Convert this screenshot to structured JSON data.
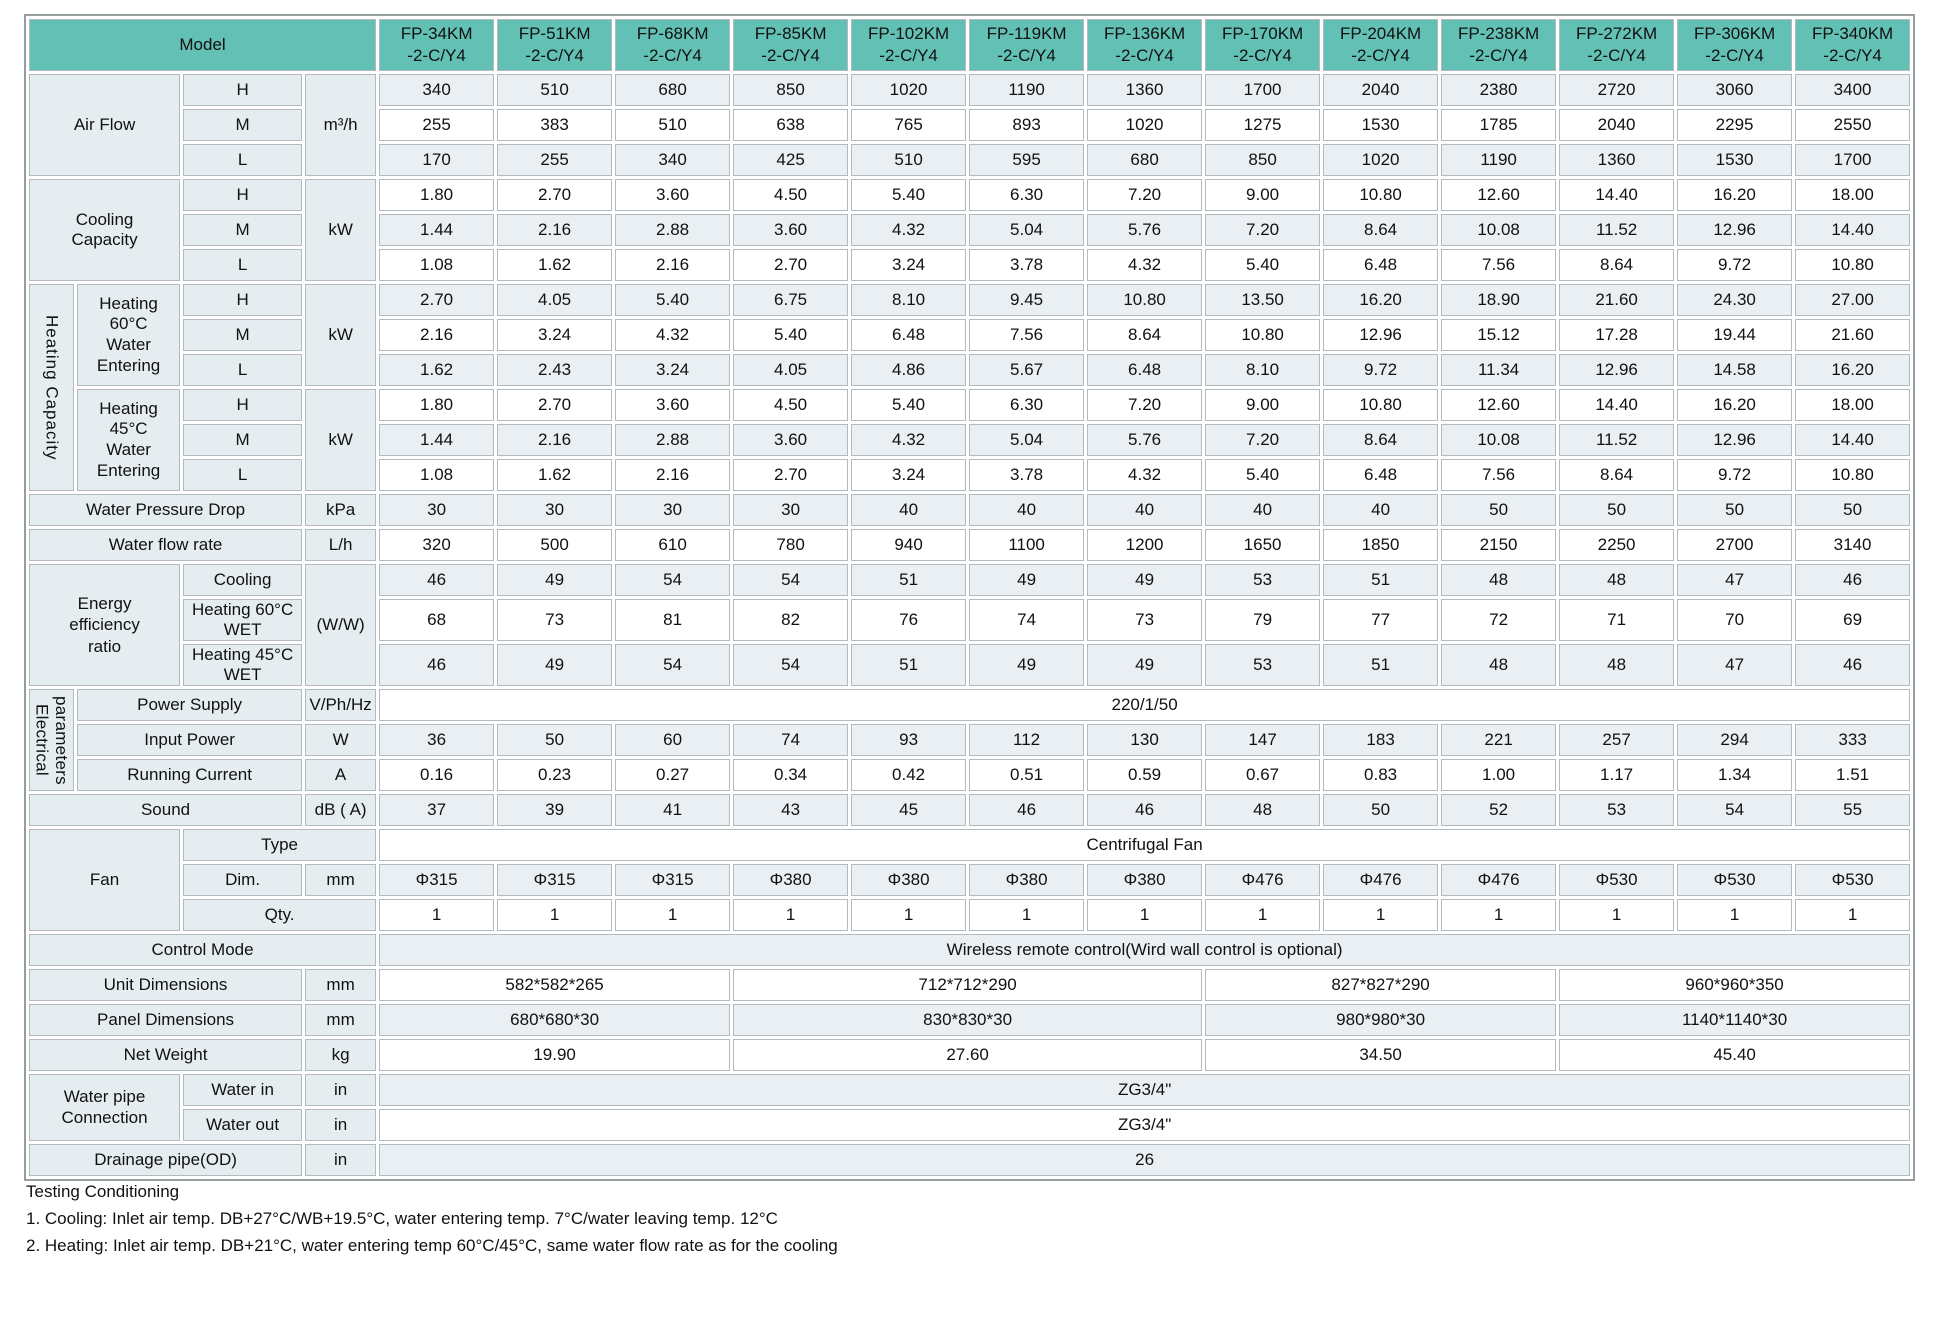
{
  "header": {
    "model_label": "Model",
    "models": [
      "FP-34KM\n-2-C/Y4",
      "FP-51KM\n-2-C/Y4",
      "FP-68KM\n-2-C/Y4",
      "FP-85KM\n-2-C/Y4",
      "FP-102KM\n-2-C/Y4",
      "FP-119KM\n-2-C/Y4",
      "FP-136KM\n-2-C/Y4",
      "FP-170KM\n-2-C/Y4",
      "FP-204KM\n-2-C/Y4",
      "FP-238KM\n-2-C/Y4",
      "FP-272KM\n-2-C/Y4",
      "FP-306KM\n-2-C/Y4",
      "FP-340KM\n-2-C/Y4"
    ]
  },
  "keys": {
    "h": "H",
    "m": "M",
    "l": "L"
  },
  "air_flow": {
    "label": "Air Flow",
    "unit": "m³/h",
    "h": [
      "340",
      "510",
      "680",
      "850",
      "1020",
      "1190",
      "1360",
      "1700",
      "2040",
      "2380",
      "2720",
      "3060",
      "3400"
    ],
    "m": [
      "255",
      "383",
      "510",
      "638",
      "765",
      "893",
      "1020",
      "1275",
      "1530",
      "1785",
      "2040",
      "2295",
      "2550"
    ],
    "l": [
      "170",
      "255",
      "340",
      "425",
      "510",
      "595",
      "680",
      "850",
      "1020",
      "1190",
      "1360",
      "1530",
      "1700"
    ]
  },
  "cooling": {
    "label": "Cooling\nCapacity",
    "unit": "kW",
    "h": [
      "1.80",
      "2.70",
      "3.60",
      "4.50",
      "5.40",
      "6.30",
      "7.20",
      "9.00",
      "10.80",
      "12.60",
      "14.40",
      "16.20",
      "18.00"
    ],
    "m": [
      "1.44",
      "2.16",
      "2.88",
      "3.60",
      "4.32",
      "5.04",
      "5.76",
      "7.20",
      "8.64",
      "10.08",
      "11.52",
      "12.96",
      "14.40"
    ],
    "l": [
      "1.08",
      "1.62",
      "2.16",
      "2.70",
      "3.24",
      "3.78",
      "4.32",
      "5.40",
      "6.48",
      "7.56",
      "8.64",
      "9.72",
      "10.80"
    ]
  },
  "heating": {
    "group_label": "Heating Capacity",
    "h60": {
      "label": "Heating\n60°C\nWater\nEntering",
      "unit": "kW",
      "h": [
        "2.70",
        "4.05",
        "5.40",
        "6.75",
        "8.10",
        "9.45",
        "10.80",
        "13.50",
        "16.20",
        "18.90",
        "21.60",
        "24.30",
        "27.00"
      ],
      "m": [
        "2.16",
        "3.24",
        "4.32",
        "5.40",
        "6.48",
        "7.56",
        "8.64",
        "10.80",
        "12.96",
        "15.12",
        "17.28",
        "19.44",
        "21.60"
      ],
      "l": [
        "1.62",
        "2.43",
        "3.24",
        "4.05",
        "4.86",
        "5.67",
        "6.48",
        "8.10",
        "9.72",
        "11.34",
        "12.96",
        "14.58",
        "16.20"
      ]
    },
    "h45": {
      "label": "Heating\n45°C\nWater\nEntering",
      "unit": "kW",
      "h": [
        "1.80",
        "2.70",
        "3.60",
        "4.50",
        "5.40",
        "6.30",
        "7.20",
        "9.00",
        "10.80",
        "12.60",
        "14.40",
        "16.20",
        "18.00"
      ],
      "m": [
        "1.44",
        "2.16",
        "2.88",
        "3.60",
        "4.32",
        "5.04",
        "5.76",
        "7.20",
        "8.64",
        "10.08",
        "11.52",
        "12.96",
        "14.40"
      ],
      "l": [
        "1.08",
        "1.62",
        "2.16",
        "2.70",
        "3.24",
        "3.78",
        "4.32",
        "5.40",
        "6.48",
        "7.56",
        "8.64",
        "9.72",
        "10.80"
      ]
    }
  },
  "water_pressure_drop": {
    "label": "Water Pressure Drop",
    "unit": "kPa",
    "values": [
      "30",
      "30",
      "30",
      "30",
      "40",
      "40",
      "40",
      "40",
      "40",
      "50",
      "50",
      "50",
      "50"
    ]
  },
  "water_flow_rate": {
    "label": "Water flow rate",
    "unit": "L/h",
    "values": [
      "320",
      "500",
      "610",
      "780",
      "940",
      "1100",
      "1200",
      "1650",
      "1850",
      "2150",
      "2250",
      "2700",
      "3140"
    ]
  },
  "eer": {
    "label": "Energy\nefficiency\nratio",
    "unit": "(W/W)",
    "cooling_label": "Cooling",
    "h60_label": "Heating 60°C WET",
    "h45_label": "Heating 45°C WET",
    "cooling": [
      "46",
      "49",
      "54",
      "54",
      "51",
      "49",
      "49",
      "53",
      "51",
      "48",
      "48",
      "47",
      "46"
    ],
    "h60": [
      "68",
      "73",
      "81",
      "82",
      "76",
      "74",
      "73",
      "79",
      "77",
      "72",
      "71",
      "70",
      "69"
    ],
    "h45": [
      "46",
      "49",
      "54",
      "54",
      "51",
      "49",
      "49",
      "53",
      "51",
      "48",
      "48",
      "47",
      "46"
    ]
  },
  "electrical": {
    "group_label": "Electrical\nparameters",
    "power_supply": {
      "label": "Power Supply",
      "unit": "V/Ph/Hz",
      "value": "220/1/50"
    },
    "input_power": {
      "label": "Input Power",
      "unit": "W",
      "values": [
        "36",
        "50",
        "60",
        "74",
        "93",
        "112",
        "130",
        "147",
        "183",
        "221",
        "257",
        "294",
        "333"
      ]
    },
    "running_current": {
      "label": "Running Current",
      "unit": "A",
      "values": [
        "0.16",
        "0.23",
        "0.27",
        "0.34",
        "0.42",
        "0.51",
        "0.59",
        "0.67",
        "0.83",
        "1.00",
        "1.17",
        "1.34",
        "1.51"
      ]
    }
  },
  "sound": {
    "label": "Sound",
    "unit": "dB ( A)",
    "values": [
      "37",
      "39",
      "41",
      "43",
      "45",
      "46",
      "46",
      "48",
      "50",
      "52",
      "53",
      "54",
      "55"
    ]
  },
  "fan": {
    "label": "Fan",
    "type_label": "Type",
    "type_value": "Centrifugal Fan",
    "dim_label": "Dim.",
    "dim_unit": "mm",
    "dim_values": [
      "Φ315",
      "Φ315",
      "Φ315",
      "Φ380",
      "Φ380",
      "Φ380",
      "Φ380",
      "Φ476",
      "Φ476",
      "Φ476",
      "Φ530",
      "Φ530",
      "Φ530"
    ],
    "qty_label": "Qty.",
    "qty_values": [
      "1",
      "1",
      "1",
      "1",
      "1",
      "1",
      "1",
      "1",
      "1",
      "1",
      "1",
      "1",
      "1"
    ]
  },
  "control_mode": {
    "label": "Control Mode",
    "value": "Wireless remote control(Wird wall control is optional)"
  },
  "unit_dimensions": {
    "label": "Unit Dimensions",
    "unit": "mm",
    "values": [
      "582*582*265",
      "712*712*290",
      "827*827*290",
      "960*960*350"
    ]
  },
  "panel_dimensions": {
    "label": "Panel Dimensions",
    "unit": "mm",
    "values": [
      "680*680*30",
      "830*830*30",
      "980*980*30",
      "1140*1140*30"
    ]
  },
  "net_weight": {
    "label": "Net Weight",
    "unit": "kg",
    "values": [
      "19.90",
      "27.60",
      "34.50",
      "45.40"
    ]
  },
  "water_pipe": {
    "label": "Water pipe\nConnection",
    "in_label": "Water in",
    "out_label": "Water out",
    "unit": "in",
    "in_value": "ZG3/4\"",
    "out_value": "ZG3/4\""
  },
  "drainage": {
    "label": "Drainage pipe(OD)",
    "unit": "in",
    "value": "26"
  },
  "notes": {
    "title": "Testing Conditioning",
    "lines": [
      "1. Cooling: Inlet air temp. DB+27°C/WB+19.5°C, water entering temp. 7°C/water leaving temp. 12°C",
      "2. Heating: Inlet air temp. DB+21°C, water entering temp 60°C/45°C, same water flow rate as for the cooling"
    ]
  },
  "colors": {
    "header_teal": "#63c0b4",
    "row_alt": "#e9eff2",
    "label_bg": "#e6edf0",
    "border": "#b2babd"
  }
}
